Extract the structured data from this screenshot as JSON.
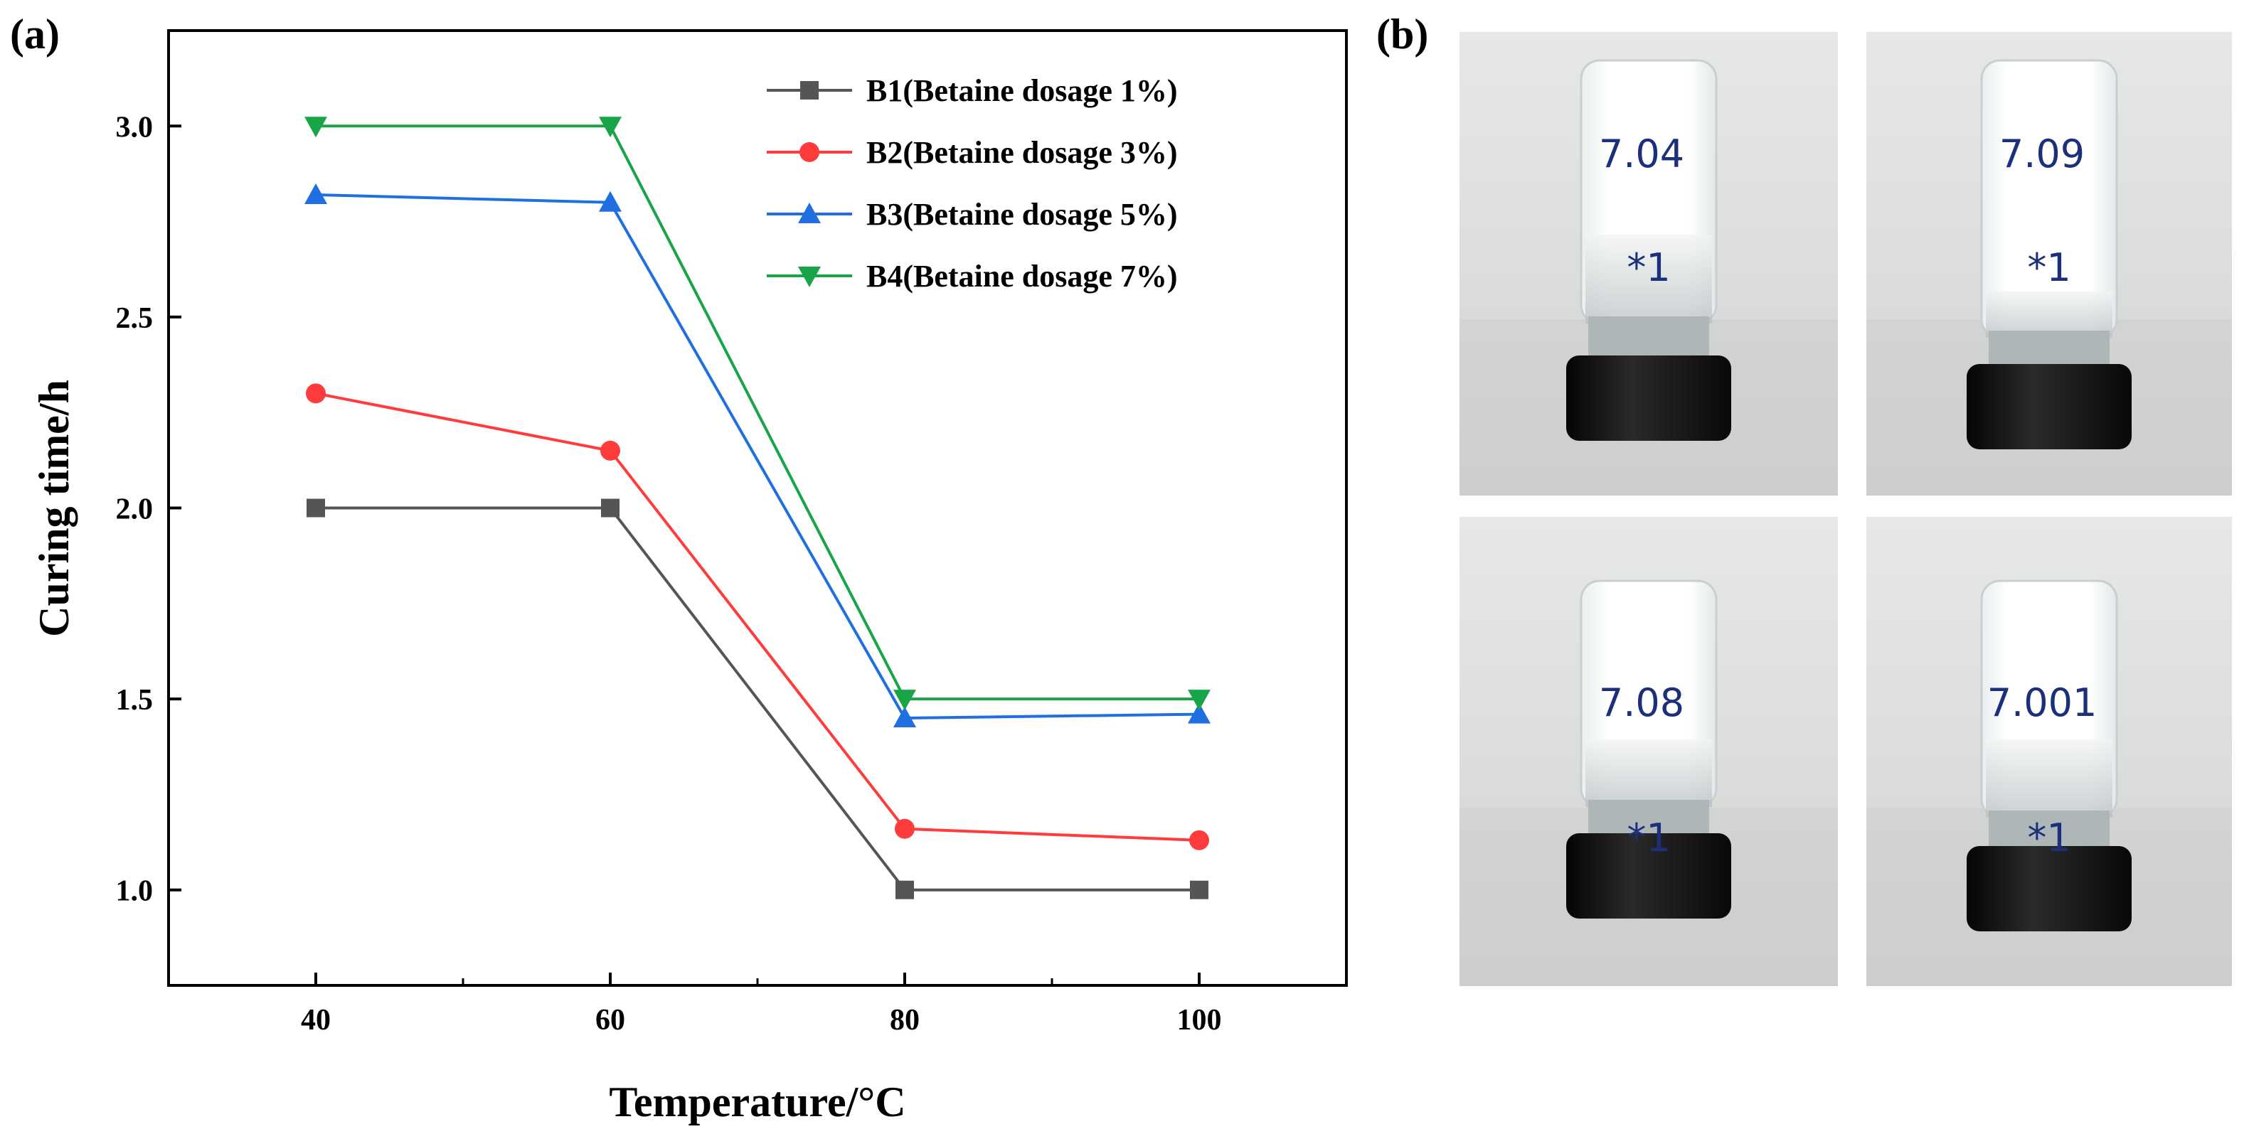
{
  "panels": {
    "a_label": "(a)",
    "b_label": "(b)"
  },
  "chart_data": {
    "type": "line",
    "title": "",
    "xlabel": "Temperature/°C",
    "ylabel": "Curing time/h",
    "x": [
      40,
      60,
      80,
      100
    ],
    "xlim": [
      30,
      110
    ],
    "ylim": [
      0.75,
      3.25
    ],
    "x_ticks": [
      40,
      60,
      80,
      100
    ],
    "x_minor_ticks": [
      50,
      70,
      90
    ],
    "y_ticks": [
      1.0,
      1.5,
      2.0,
      2.5,
      3.0
    ],
    "y_tick_labels": [
      "1.0",
      "1.5",
      "2.0",
      "2.5",
      "3.0"
    ],
    "grid": false,
    "legend_position": "top-right",
    "series": [
      {
        "name": "B1(Betaine dosage 1%)",
        "values": [
          2.0,
          2.0,
          1.0,
          1.0
        ],
        "color": "#555555",
        "marker": "square"
      },
      {
        "name": "B2(Betaine dosage 3%)",
        "values": [
          2.3,
          2.15,
          1.16,
          1.13
        ],
        "color": "#ff3b3b",
        "marker": "circle"
      },
      {
        "name": "B3(Betaine dosage 5%)",
        "values": [
          2.82,
          2.8,
          1.45,
          1.46
        ],
        "color": "#1f6fe0",
        "marker": "triangle-up"
      },
      {
        "name": "B4(Betaine dosage 7%)",
        "values": [
          3.0,
          3.0,
          1.5,
          1.5
        ],
        "color": "#17a548",
        "marker": "triangle-down"
      }
    ]
  },
  "photos": [
    {
      "label": "7.04",
      "mark": "*1"
    },
    {
      "label": "7.09",
      "mark": "*1"
    },
    {
      "label": "7.08",
      "mark": "*1"
    },
    {
      "label": "7.001",
      "mark": "*1"
    }
  ]
}
